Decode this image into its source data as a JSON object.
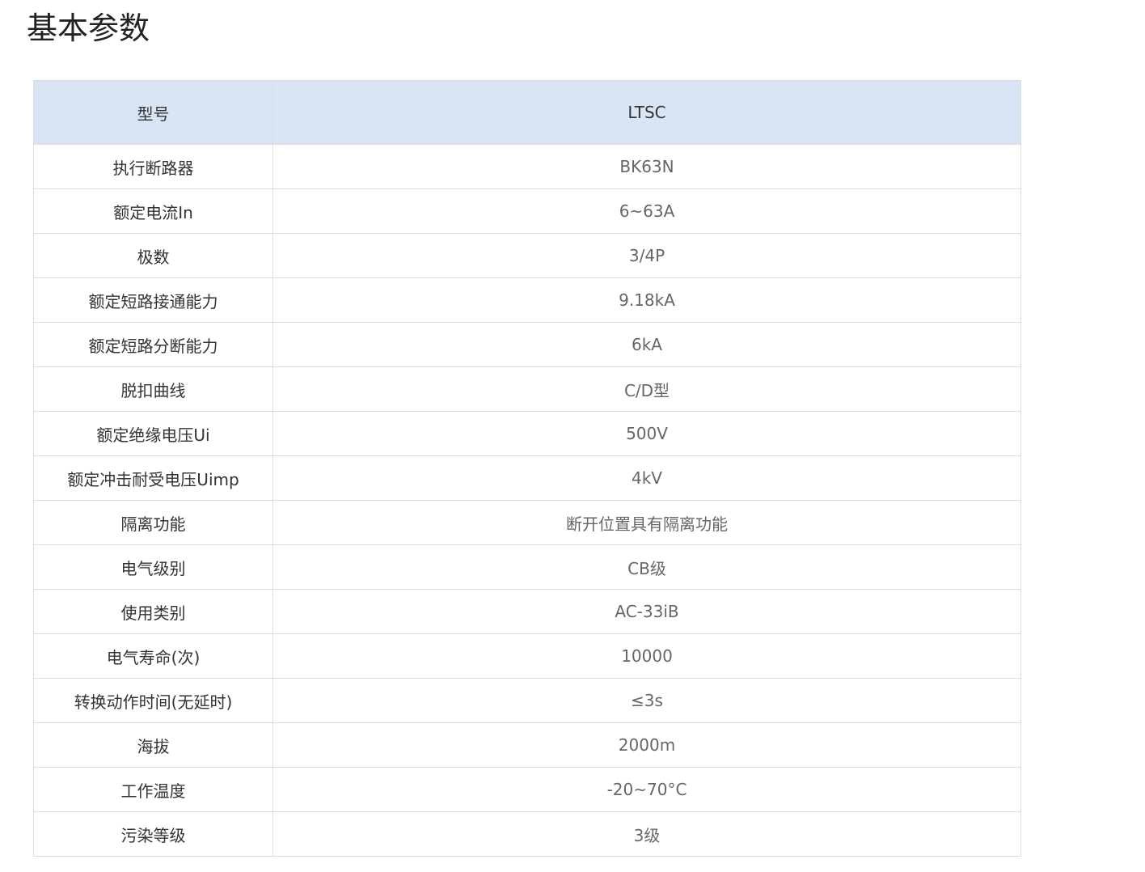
{
  "title": "基本参数",
  "header": {
    "label": "型号",
    "value": "LTSC"
  },
  "header_bg": "#d9e5f5",
  "rows": [
    {
      "label": "执行断路器",
      "value": "BK63N"
    },
    {
      "label": "额定电流In",
      "value": "6~63A"
    },
    {
      "label": "极数",
      "value": "3/4P"
    },
    {
      "label": "额定短路接通能力",
      "value": "9.18kA"
    },
    {
      "label": "额定短路分断能力",
      "value": "6kA"
    },
    {
      "label": "脱扣曲线",
      "value": "C/D型"
    },
    {
      "label": "额定绝缘电压Ui",
      "value": "500V"
    },
    {
      "label": "额定冲击耐受电压Uimp",
      "value": "4kV"
    },
    {
      "label": "隔离功能",
      "value": "断开位置具有隔离功能"
    },
    {
      "label": "电气级别",
      "value": "CB级"
    },
    {
      "label": "使用类别",
      "value": "AC-33iB"
    },
    {
      "label": "电气寿命(次)",
      "value": "10000"
    },
    {
      "label": "转换动作时间(无延时)",
      "value": "≤3s"
    },
    {
      "label": "海拔",
      "value": "2000m"
    },
    {
      "label": "工作温度",
      "value": "-20~70°C"
    },
    {
      "label": "污染等级",
      "value": "3级"
    }
  ]
}
